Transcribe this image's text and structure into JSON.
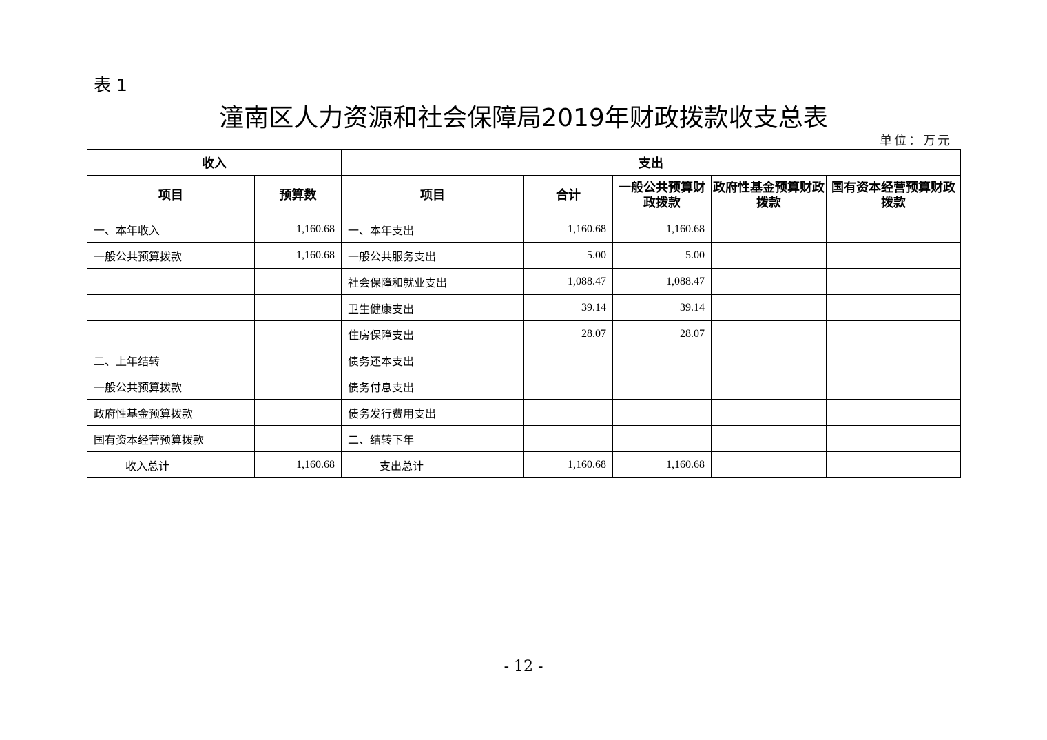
{
  "table_label": "表 1",
  "title": "潼南区人力资源和社会保障局2019年财政拨款收支总表",
  "unit": "单位：万元",
  "header": {
    "income": "收入",
    "expense": "支出",
    "columns": [
      "项目",
      "预算数",
      "项目",
      "合计",
      "一般公共预算财政拨款",
      "政府性基金预算财政拨款",
      "国有资本经营预算财政拨款"
    ]
  },
  "rows": [
    [
      "一、本年收入",
      "1,160.68",
      "一、本年支出",
      "1,160.68",
      "1,160.68",
      "",
      ""
    ],
    [
      "一般公共预算拨款",
      "1,160.68",
      "一般公共服务支出",
      "5.00",
      "5.00",
      "",
      ""
    ],
    [
      "",
      "",
      "社会保障和就业支出",
      "1,088.47",
      "1,088.47",
      "",
      ""
    ],
    [
      "",
      "",
      "卫生健康支出",
      "39.14",
      "39.14",
      "",
      ""
    ],
    [
      "",
      "",
      "住房保障支出",
      "28.07",
      "28.07",
      "",
      ""
    ],
    [
      "二、上年结转",
      "",
      "债务还本支出",
      "",
      "",
      "",
      ""
    ],
    [
      "一般公共预算拨款",
      "",
      "债务付息支出",
      "",
      "",
      "",
      ""
    ],
    [
      "政府性基金预算拨款",
      "",
      "债务发行费用支出",
      "",
      "",
      "",
      ""
    ],
    [
      "国有资本经营预算拨款",
      "",
      "二、结转下年",
      "",
      "",
      "",
      ""
    ],
    [
      "收入总计",
      "1,160.68",
      "支出总计",
      "1,160.68",
      "1,160.68",
      "",
      ""
    ]
  ],
  "page_number": "- 12 -"
}
